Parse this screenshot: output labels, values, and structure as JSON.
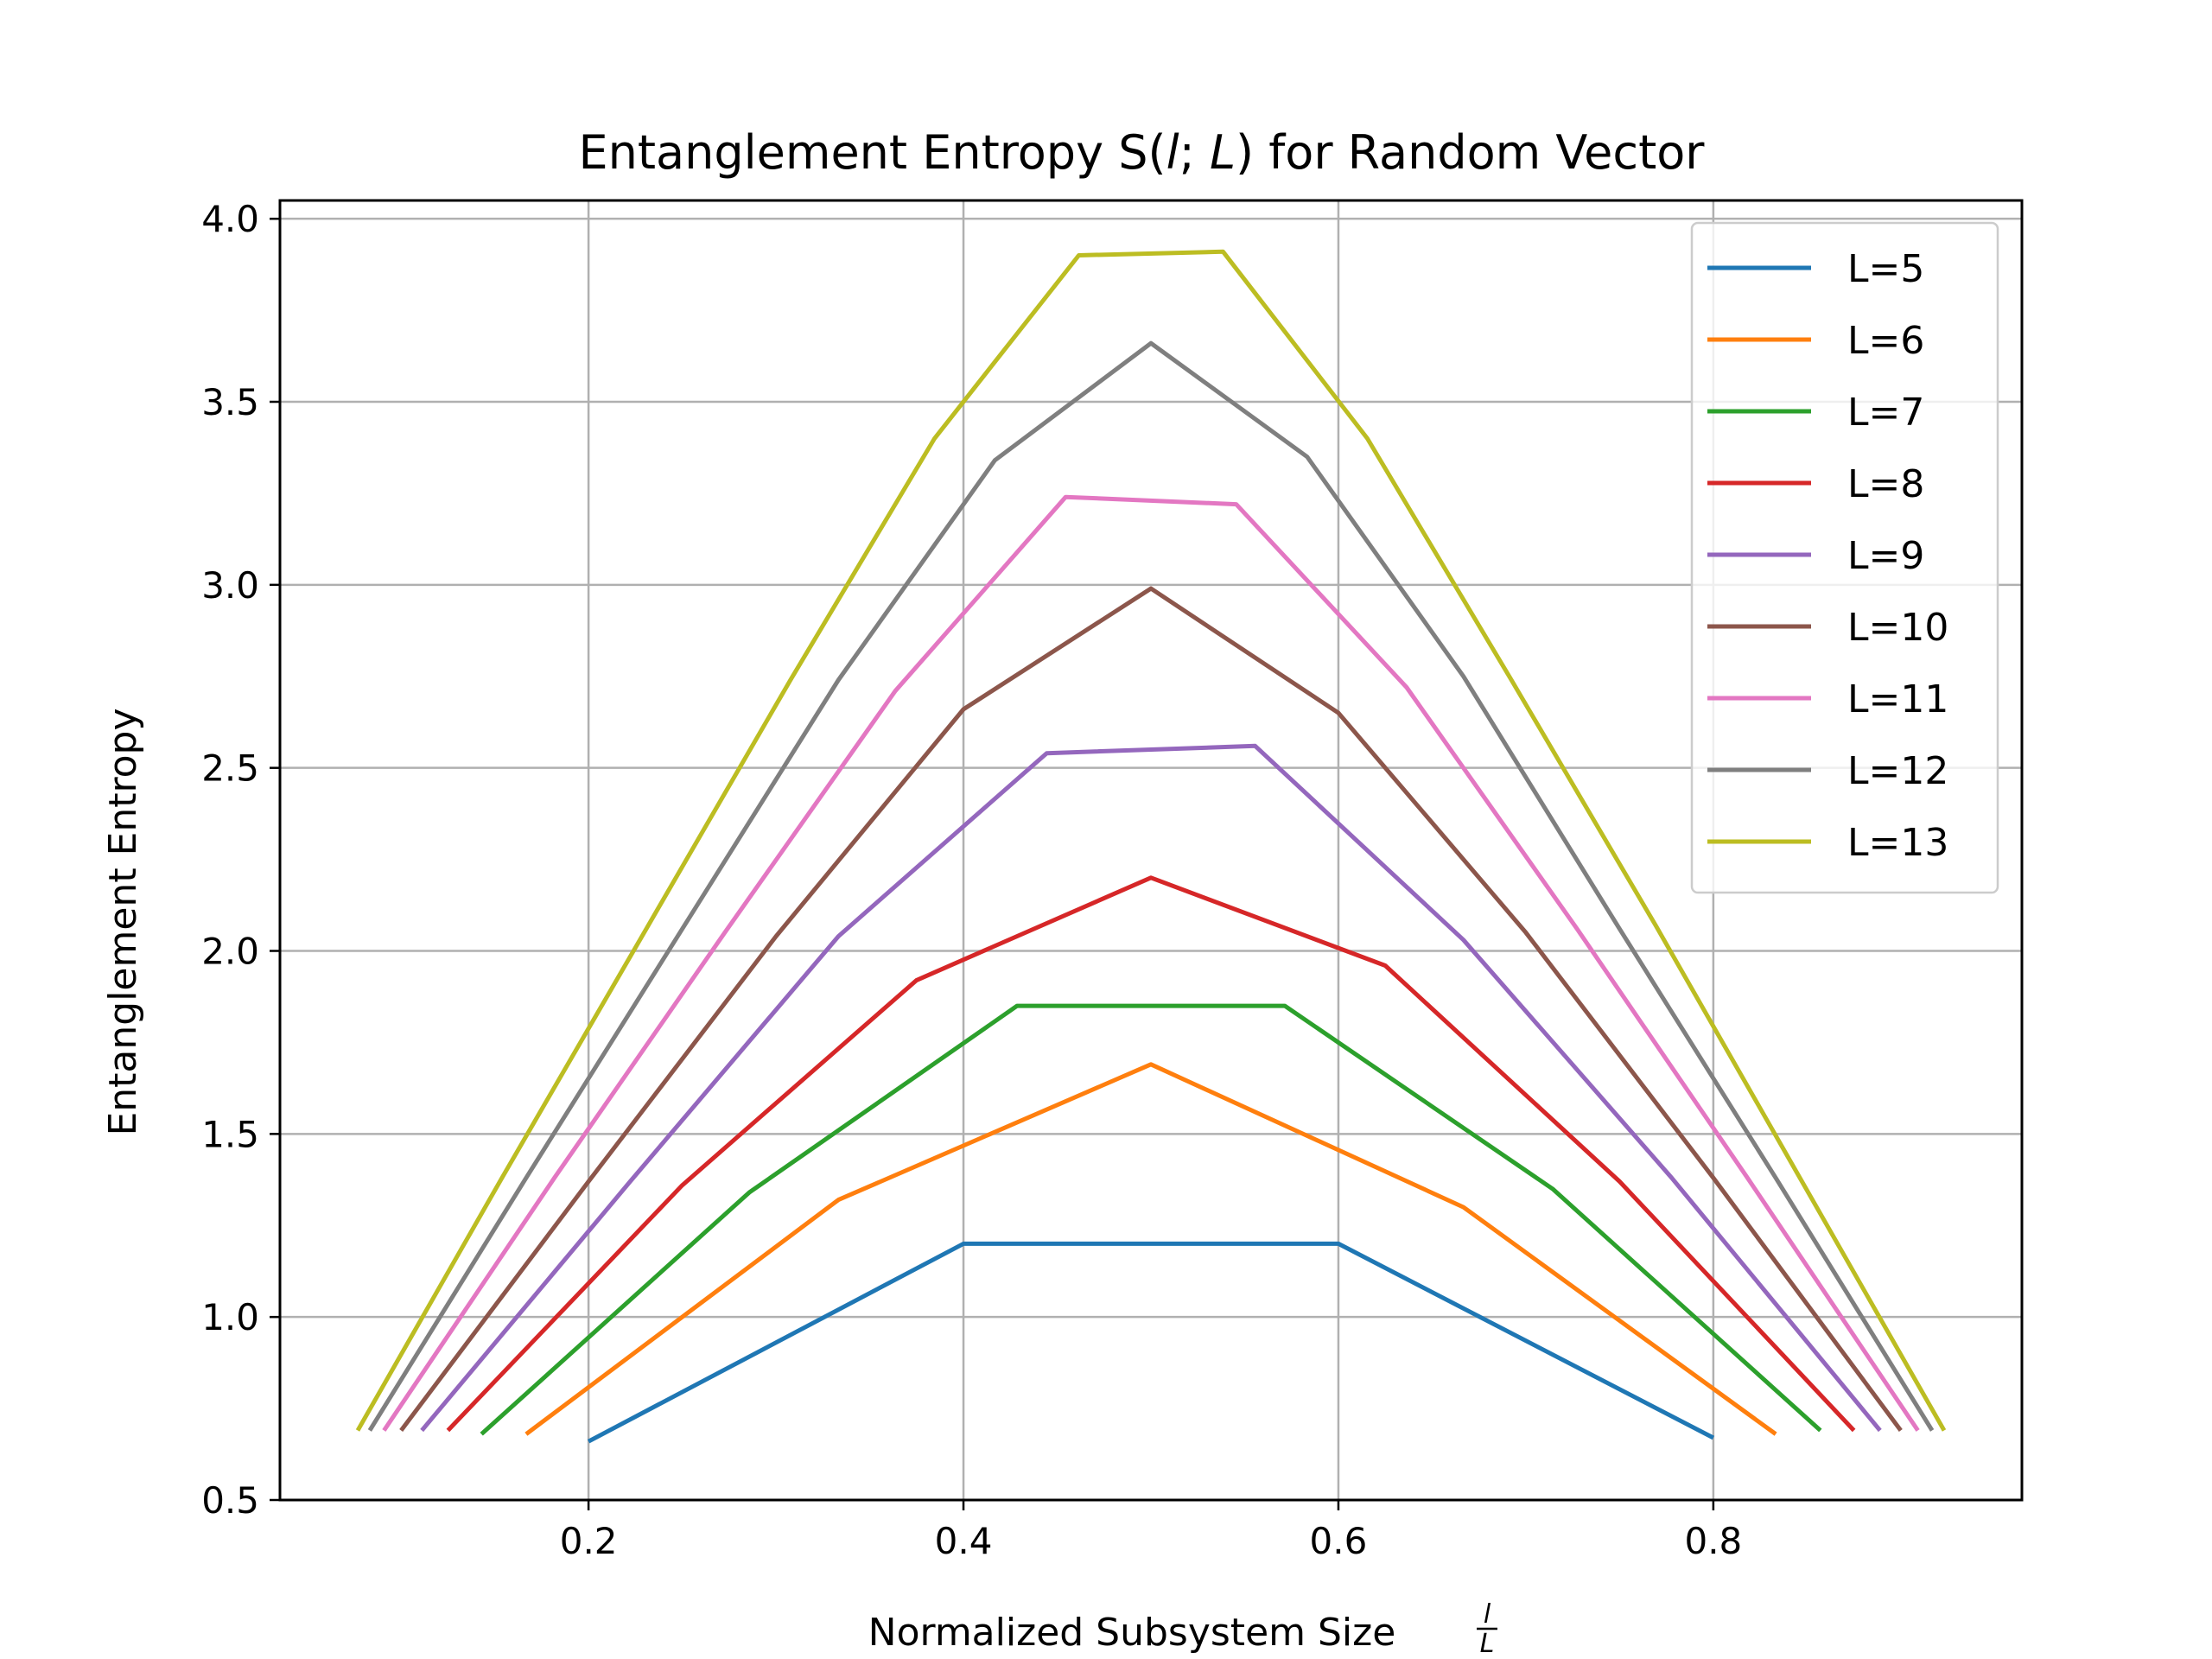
{
  "chart_data": {
    "type": "line",
    "title_parts": [
      "Entanglement Entropy S(",
      "l",
      "; ",
      "L",
      ") for Random Vector"
    ],
    "xlabel": "Normalized Subsystem Size",
    "xlabel_frac": {
      "num": "l",
      "den": "L"
    },
    "ylabel": "Entanglement Entropy",
    "xlim": [
      0.0354,
      0.9646
    ],
    "ylim": [
      0.5,
      4.05
    ],
    "xticks": [
      0.2,
      0.4,
      0.6,
      0.8
    ],
    "xtick_labels": [
      "0.2",
      "0.4",
      "0.6",
      "0.8"
    ],
    "yticks": [
      0.5,
      1.0,
      1.5,
      2.0,
      2.5,
      3.0,
      3.5,
      4.0
    ],
    "ytick_labels": [
      "0.5",
      "1.0",
      "1.5",
      "2.0",
      "2.5",
      "3.0",
      "3.5",
      "4.0"
    ],
    "grid": true,
    "legend_position": "top-right",
    "series": [
      {
        "name": "L=5",
        "color": "#1f77b4",
        "x": [
          0.2,
          0.4,
          0.6,
          0.8
        ],
        "y": [
          0.66,
          1.2,
          1.2,
          0.67
        ]
      },
      {
        "name": "L=6",
        "color": "#ff7f0e",
        "x": [
          0.1667,
          0.3333,
          0.5,
          0.6667,
          0.8333
        ],
        "y": [
          0.68,
          1.32,
          1.69,
          1.3,
          0.68
        ]
      },
      {
        "name": "L=7",
        "color": "#2ca02c",
        "x": [
          0.1429,
          0.2857,
          0.4286,
          0.5714,
          0.7143,
          0.8571
        ],
        "y": [
          0.68,
          1.34,
          1.85,
          1.85,
          1.35,
          0.69
        ]
      },
      {
        "name": "L=8",
        "color": "#d62728",
        "x": [
          0.125,
          0.25,
          0.375,
          0.5,
          0.625,
          0.75,
          0.875
        ],
        "y": [
          0.69,
          1.36,
          1.92,
          2.2,
          1.96,
          1.37,
          0.69
        ]
      },
      {
        "name": "L=9",
        "color": "#9467bd",
        "x": [
          0.1111,
          0.2222,
          0.3333,
          0.4444,
          0.5556,
          0.6667,
          0.7778,
          0.8889
        ],
        "y": [
          0.69,
          1.37,
          2.04,
          2.54,
          2.56,
          2.03,
          1.38,
          0.69
        ]
      },
      {
        "name": "L=10",
        "color": "#8c564b",
        "x": [
          0.1,
          0.2,
          0.3,
          0.4,
          0.5,
          0.6,
          0.7,
          0.8,
          0.9
        ],
        "y": [
          0.69,
          1.37,
          2.04,
          2.66,
          2.99,
          2.65,
          2.05,
          1.38,
          0.69
        ]
      },
      {
        "name": "L=11",
        "color": "#e377c2",
        "x": [
          0.0909,
          0.1818,
          0.2727,
          0.3636,
          0.4545,
          0.5455,
          0.6364,
          0.7273,
          0.8182,
          0.9091
        ],
        "y": [
          0.69,
          1.38,
          2.05,
          2.71,
          3.24,
          3.22,
          2.72,
          2.06,
          1.38,
          0.69
        ]
      },
      {
        "name": "L=12",
        "color": "#7f7f7f",
        "x": [
          0.0833,
          0.1667,
          0.25,
          0.3333,
          0.4167,
          0.5,
          0.5833,
          0.6667,
          0.75,
          0.8333,
          0.9167
        ],
        "y": [
          0.69,
          1.38,
          2.06,
          2.74,
          3.34,
          3.66,
          3.35,
          2.75,
          2.06,
          1.38,
          0.69
        ]
      },
      {
        "name": "L=13",
        "color": "#bcbd22",
        "x": [
          0.0769,
          0.1538,
          0.2308,
          0.3077,
          0.3846,
          0.4615,
          0.5385,
          0.6154,
          0.6923,
          0.7692,
          0.8462,
          0.9231
        ],
        "y": [
          0.69,
          1.38,
          2.06,
          2.74,
          3.4,
          3.9,
          3.91,
          3.4,
          2.74,
          2.07,
          1.38,
          0.69
        ]
      }
    ]
  }
}
